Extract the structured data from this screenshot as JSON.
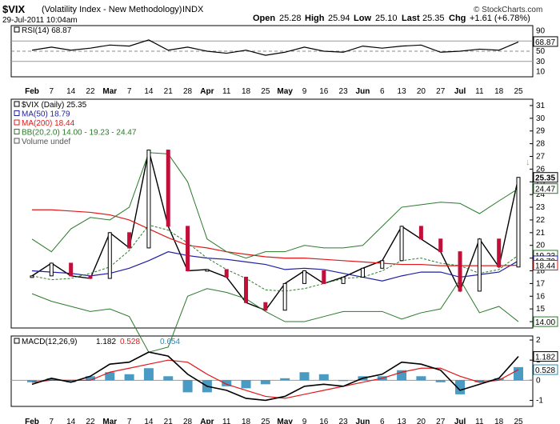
{
  "header": {
    "symbol": "$VIX",
    "name": "(Volatility Index - New Methodology)",
    "exchange": "INDX",
    "watermark": "© StockCharts.com",
    "date": "29-Jul-2011 10:04am",
    "quote": {
      "open_label": "Open",
      "open": "25.28",
      "high_label": "High",
      "high": "25.94",
      "low_label": "Low",
      "low": "25.10",
      "last_label": "Last",
      "last": "25.35",
      "chg_label": "Chg",
      "chg": "+1.61 (+6.78%)"
    }
  },
  "rsi_panel": {
    "legend": "RSI(14) 68.87",
    "last_badge": "68.87",
    "ticks": [
      "90",
      "70",
      "50",
      "30",
      "10"
    ]
  },
  "price_panel": {
    "legend": [
      {
        "text": "$VIX (Daily) 25.35",
        "color": "#000000"
      },
      {
        "text": "MA(50) 18.79",
        "color": "#1f1fa0"
      },
      {
        "text": "MA(200) 18.44",
        "color": "#e01818"
      },
      {
        "text": "BB(20,2.0) 14.00 - 19.23 - 24.47",
        "color": "#2a7a2a"
      },
      {
        "text": "Volume undef",
        "color": "#555555"
      }
    ],
    "y_ticks": [
      "31",
      "30",
      "29",
      "28",
      "27",
      "26",
      "25",
      "24",
      "23",
      "22",
      "21",
      "20",
      "19",
      "18",
      "17",
      "16",
      "15",
      "14"
    ],
    "badges": [
      {
        "text": "25.35",
        "value": 25.35
      },
      {
        "text": "24.47",
        "value": 24.47
      },
      {
        "text": "19.23",
        "value": 19.23
      },
      {
        "text": "18.79",
        "value": 18.79
      },
      {
        "text": "18.44",
        "value": 18.44
      },
      {
        "text": "14.00",
        "value": 14.0
      }
    ]
  },
  "macd_panel": {
    "legend_prefix": "MACD(12,26,9)",
    "macd": "1.182",
    "signal": "0.528",
    "hist": "0.654",
    "macd_color": "#000000",
    "signal_color": "#e01818",
    "hist_color": "#2a8ab8",
    "y_ticks": [
      "2",
      "1",
      "0",
      "-1"
    ],
    "badges": [
      "1.182",
      "0.528"
    ]
  },
  "x_axis": {
    "labels": [
      "Feb",
      "7",
      "14",
      "22",
      "Mar",
      "7",
      "14",
      "21",
      "28",
      "Apr",
      "11",
      "18",
      "25",
      "May",
      "9",
      "16",
      "23",
      "Jun",
      "6",
      "13",
      "20",
      "27",
      "Jul",
      "11",
      "18",
      "25"
    ],
    "bold_labels": [
      "Feb",
      "Mar",
      "Apr",
      "May",
      "Jun",
      "Jul"
    ]
  },
  "chart_data": [
    {
      "type": "line",
      "title": "$VIX (Volatility Index - New Methodology) INDX",
      "subtitle": "RSI(14)",
      "x": [
        "Feb",
        "7",
        "14",
        "22",
        "Mar",
        "7",
        "14",
        "21",
        "28",
        "Apr",
        "11",
        "18",
        "25",
        "May",
        "9",
        "16",
        "23",
        "Jun",
        "6",
        "13",
        "20",
        "27",
        "Jul",
        "11",
        "18",
        "25"
      ],
      "series": [
        {
          "name": "RSI(14)",
          "values": [
            52,
            58,
            52,
            56,
            62,
            60,
            72,
            52,
            58,
            50,
            46,
            52,
            42,
            48,
            58,
            50,
            48,
            60,
            56,
            60,
            62,
            48,
            50,
            54,
            52,
            68
          ]
        }
      ],
      "ylim": [
        0,
        100
      ],
      "last": 68.87
    },
    {
      "type": "line",
      "title": "$VIX (Daily) 25.35",
      "x": [
        "Feb",
        "7",
        "14",
        "22",
        "Mar",
        "7",
        "14",
        "21",
        "28",
        "Apr",
        "11",
        "18",
        "25",
        "May",
        "9",
        "16",
        "23",
        "Jun",
        "6",
        "13",
        "20",
        "27",
        "Jul",
        "11",
        "18",
        "25"
      ],
      "series": [
        {
          "name": "$VIX (Daily)",
          "values": [
            17.6,
            18.6,
            17.6,
            17.4,
            21.0,
            19.8,
            27.5,
            21.5,
            18.0,
            18.1,
            17.5,
            15.5,
            14.9,
            17.0,
            18.0,
            17.0,
            17.5,
            18.2,
            18.8,
            21.5,
            20.5,
            19.5,
            16.4,
            20.5,
            18.3,
            25.35
          ]
        },
        {
          "name": "MA(50)",
          "values": [
            18.0,
            17.9,
            17.8,
            17.6,
            17.8,
            18.2,
            18.8,
            19.5,
            19.2,
            19.0,
            18.9,
            18.7,
            18.5,
            18.1,
            18.2,
            18.1,
            17.8,
            17.5,
            17.2,
            17.6,
            17.9,
            17.9,
            17.5,
            17.7,
            17.9,
            18.79
          ]
        },
        {
          "name": "MA(200)",
          "values": [
            22.8,
            22.8,
            22.7,
            22.6,
            22.4,
            22.0,
            21.3,
            20.6,
            20.0,
            19.8,
            19.5,
            19.3,
            19.1,
            19.0,
            19.0,
            18.9,
            18.8,
            18.7,
            18.6,
            18.5,
            18.5,
            18.4,
            18.4,
            18.4,
            18.4,
            18.44
          ]
        },
        {
          "name": "BB Upper",
          "values": [
            20.5,
            19.5,
            21.3,
            22.2,
            22.0,
            23.0,
            27.3,
            27.2,
            25.0,
            20.5,
            19.5,
            19.0,
            19.5,
            19.5,
            20.0,
            19.8,
            19.8,
            20.0,
            21.5,
            23.0,
            23.2,
            23.4,
            23.3,
            22.5,
            23.5,
            24.47
          ]
        },
        {
          "name": "BB Middle",
          "values": [
            17.6,
            17.3,
            17.4,
            17.8,
            18.3,
            19.6,
            21.6,
            21.2,
            20.2,
            19.0,
            18.1,
            17.4,
            16.5,
            16.4,
            16.6,
            17.0,
            17.4,
            17.5,
            18.0,
            18.8,
            19.0,
            18.6,
            18.4,
            17.8,
            18.1,
            19.23
          ]
        },
        {
          "name": "BB Lower",
          "values": [
            16.2,
            15.6,
            15.2,
            14.8,
            15.0,
            14.4,
            11.6,
            12.0,
            16.0,
            16.6,
            16.3,
            15.8,
            14.8,
            14.0,
            14.0,
            14.4,
            14.8,
            14.8,
            14.8,
            14.2,
            14.7,
            15.0,
            17.3,
            14.7,
            15.2,
            14.0
          ]
        }
      ],
      "ylim": [
        13.5,
        31.5
      ]
    },
    {
      "type": "line",
      "title": "MACD(12,26,9) 1.182, 0.528, 0.654",
      "x": [
        "Feb",
        "7",
        "14",
        "22",
        "Mar",
        "7",
        "14",
        "21",
        "28",
        "Apr",
        "11",
        "18",
        "25",
        "May",
        "9",
        "16",
        "23",
        "Jun",
        "6",
        "13",
        "20",
        "27",
        "Jul",
        "11",
        "18",
        "25"
      ],
      "series": [
        {
          "name": "MACD",
          "values": [
            -0.2,
            0.1,
            -0.1,
            0.2,
            0.8,
            0.9,
            1.4,
            1.2,
            0.3,
            -0.3,
            -0.5,
            -0.9,
            -1.0,
            -0.8,
            -0.3,
            -0.2,
            -0.3,
            0.1,
            0.3,
            0.9,
            0.8,
            0.5,
            -0.5,
            -0.2,
            0.1,
            1.182
          ]
        },
        {
          "name": "Signal",
          "values": [
            -0.1,
            0.0,
            0.0,
            0.0,
            0.4,
            0.6,
            0.8,
            1.0,
            0.9,
            0.3,
            -0.2,
            -0.5,
            -0.8,
            -0.9,
            -0.7,
            -0.5,
            -0.3,
            -0.1,
            0.1,
            0.4,
            0.6,
            0.6,
            0.2,
            -0.1,
            0.0,
            0.528
          ]
        },
        {
          "name": "Histogram",
          "values": [
            -0.1,
            0.1,
            -0.1,
            0.2,
            0.4,
            0.3,
            0.6,
            0.2,
            -0.6,
            -0.6,
            -0.3,
            -0.4,
            -0.2,
            0.1,
            0.4,
            0.3,
            0.0,
            0.2,
            0.2,
            0.5,
            0.2,
            -0.1,
            -0.7,
            -0.1,
            0.1,
            0.654
          ]
        }
      ],
      "ylim": [
        -1.3,
        2.2
      ]
    }
  ]
}
